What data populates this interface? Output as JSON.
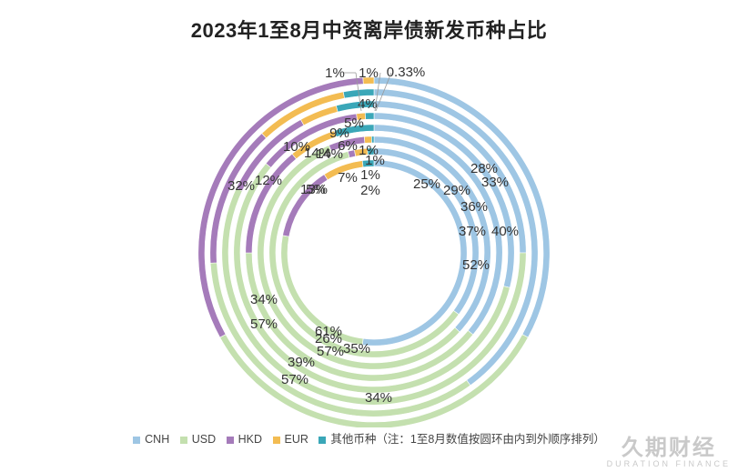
{
  "title": "2023年1至8月中资离岸债新发币种占比",
  "chart_data": {
    "type": "donut",
    "rings_order": "inner_to_outer",
    "categories": [
      "CNH",
      "USD",
      "HKD",
      "EUR",
      "其他币种"
    ],
    "colors": [
      "#9ec6e4",
      "#c4e0af",
      "#a57bba",
      "#f3bc52",
      "#3aa7b8"
    ],
    "rings": [
      {
        "values": [
          52,
          26,
          13,
          7,
          2
        ],
        "labels": [
          "52%",
          "26%",
          "13%",
          "7%",
          "2%"
        ]
      },
      {
        "values": [
          35,
          61,
          1,
          2,
          1
        ],
        "labels": [
          "35%",
          "61%",
          "",
          "",
          ""
        ]
      },
      {
        "values": [
          37,
          57,
          5,
          1,
          0.33
        ],
        "labels": [
          "37%",
          "57%",
          "5%",
          "1%",
          "0.33%"
        ]
      },
      {
        "values": [
          36,
          39,
          14,
          6,
          5
        ],
        "labels": [
          "36%",
          "39%",
          "14%",
          "6%",
          "5%"
        ]
      },
      {
        "values": [
          29,
          57,
          12,
          1,
          1
        ],
        "labels": [
          "29%",
          "57%",
          "12%",
          "1%",
          "1%"
        ]
      },
      {
        "values": [
          25,
          57,
          10,
          4,
          4
        ],
        "labels": [
          "25%",
          "57%",
          "10%",
          "4%",
          "4%"
        ]
      },
      {
        "values": [
          40,
          34,
          14,
          9,
          3
        ],
        "labels": [
          "40%",
          "34%",
          "14%",
          "9%",
          ""
        ]
      },
      {
        "values": [
          33,
          34,
          32,
          1,
          0
        ],
        "labels": [
          "33%",
          "34%",
          "32%",
          "1%",
          ""
        ]
      }
    ],
    "extra_labels": [
      "28%",
      "1%"
    ]
  },
  "legend": {
    "items": [
      "CNH",
      "USD",
      "HKD",
      "EUR",
      "其他币种"
    ],
    "note": "（注：1至8月数值按圆环由内到外顺序排列）"
  },
  "watermark": {
    "main": "久期财经",
    "sub": "DURATION FINANCE"
  }
}
